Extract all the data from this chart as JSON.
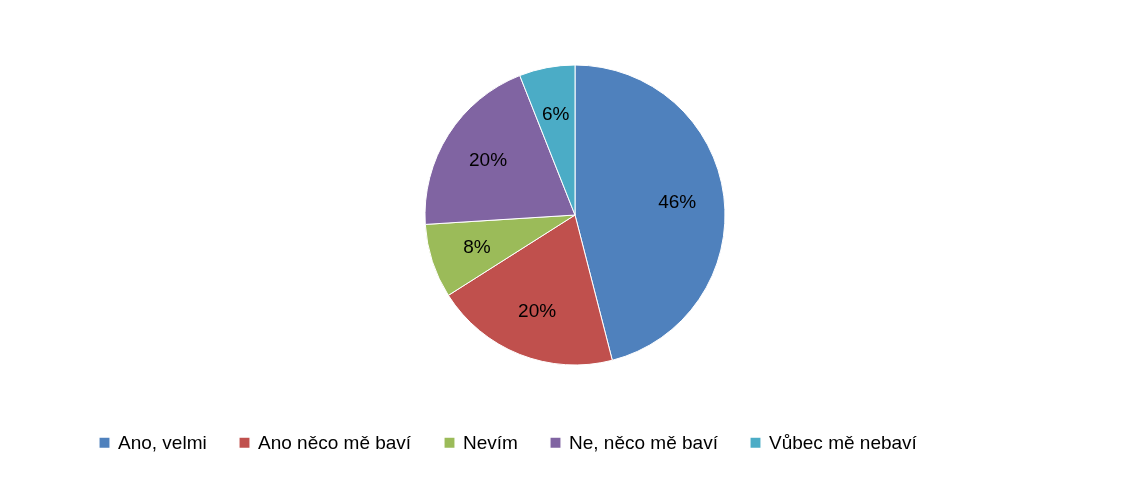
{
  "chart_data": {
    "type": "pie",
    "categories": [
      "Ano, velmi",
      "Ano něco mě baví",
      "Nevím",
      "Ne, něco mě baví",
      "Vůbec mě nebaví"
    ],
    "values": [
      46,
      20,
      8,
      20,
      6
    ],
    "colors": [
      "#4f81bd",
      "#c0504d",
      "#9bbb59",
      "#8064a2",
      "#4bacc6"
    ],
    "value_labels": [
      "46%",
      "20%",
      "8%",
      "20%",
      "6%"
    ],
    "legend": "bottom"
  }
}
